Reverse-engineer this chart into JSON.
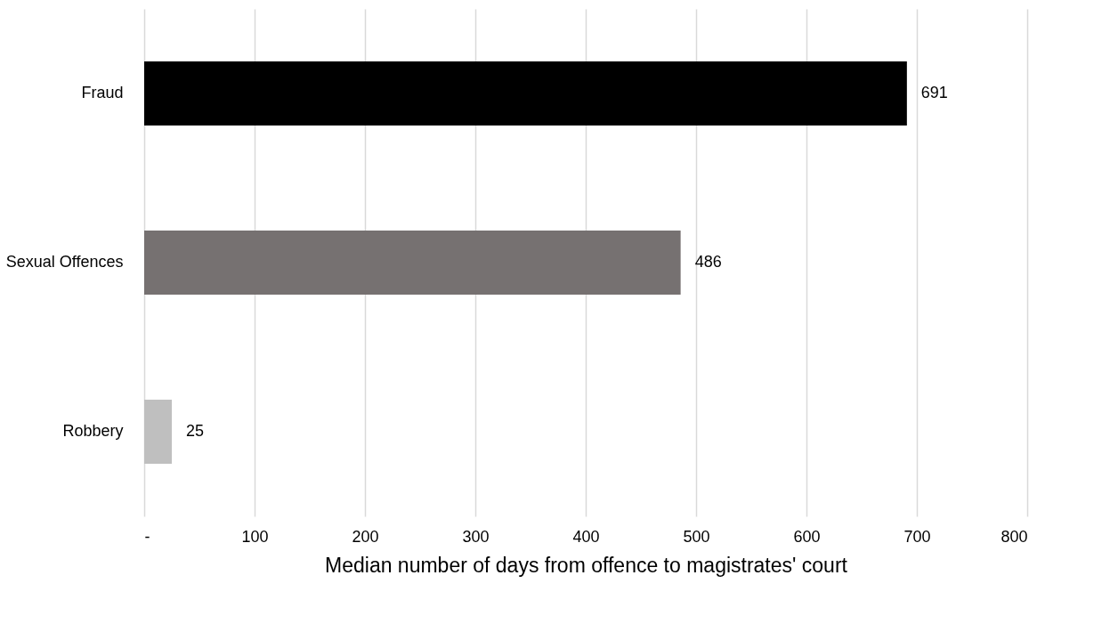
{
  "chart_data": {
    "type": "bar",
    "orientation": "horizontal",
    "categories": [
      "Fraud",
      "Sexual Offences",
      "Robbery"
    ],
    "values": [
      691,
      486,
      25
    ],
    "colors": [
      "#000000",
      "#767171",
      "#bfbfbf"
    ],
    "xlabel": "Median number of days from offence to magistrates' court",
    "xlim": [
      0,
      800
    ],
    "xticks": [
      {
        "value": 0,
        "label": "-"
      },
      100,
      200,
      300,
      400,
      500,
      600,
      700,
      800
    ],
    "grid": "x",
    "data_labels": true
  }
}
